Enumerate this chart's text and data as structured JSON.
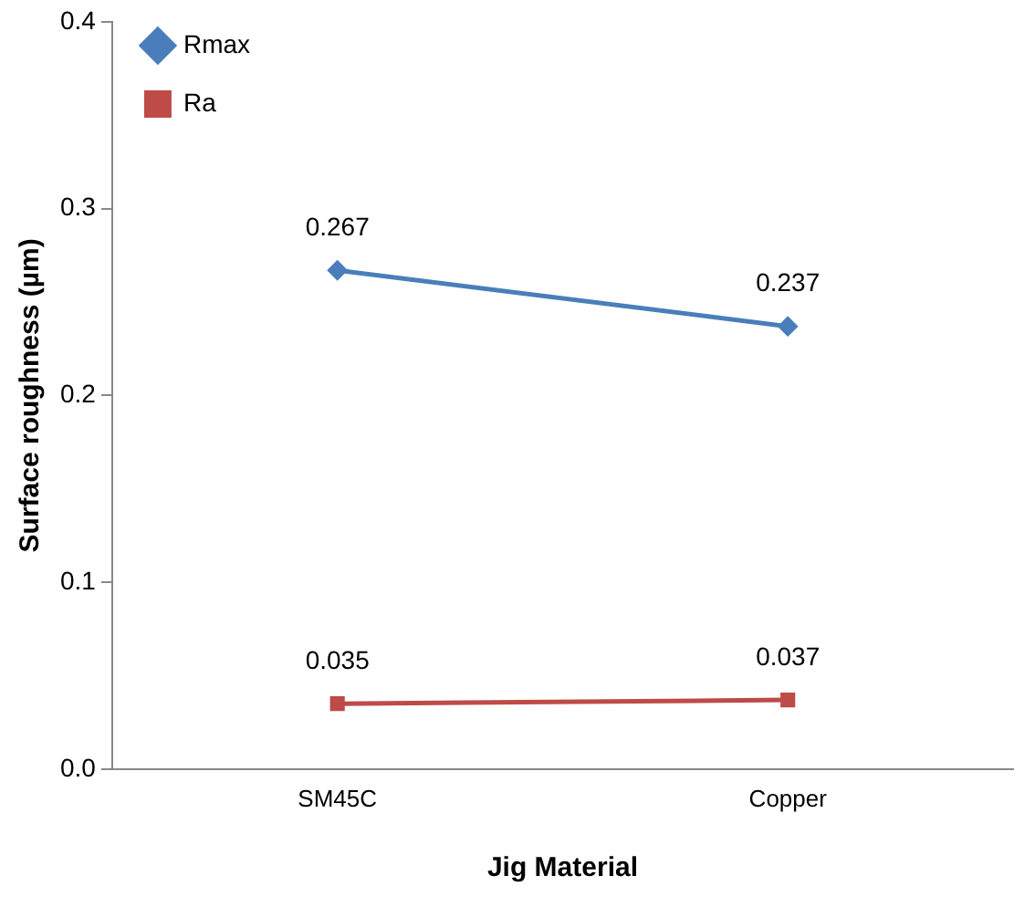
{
  "chart_data": {
    "type": "line",
    "xlabel": "Jig Material",
    "ylabel": "Surface roughness (µm)",
    "categories": [
      "SM45C",
      "Copper"
    ],
    "series": [
      {
        "name": "Rmax",
        "color": "#4a7ebb",
        "marker": "diamond",
        "values": [
          0.267,
          0.237
        ]
      },
      {
        "name": "Ra",
        "color": "#be4b48",
        "marker": "square",
        "values": [
          0.035,
          0.037
        ]
      }
    ],
    "ylim": [
      0,
      0.4
    ],
    "yticks": [
      {
        "value": 0,
        "label": "0.0"
      },
      0.1,
      0.2,
      0.3,
      0.4
    ],
    "grid": false,
    "legend": "top left",
    "data_labels": true
  }
}
